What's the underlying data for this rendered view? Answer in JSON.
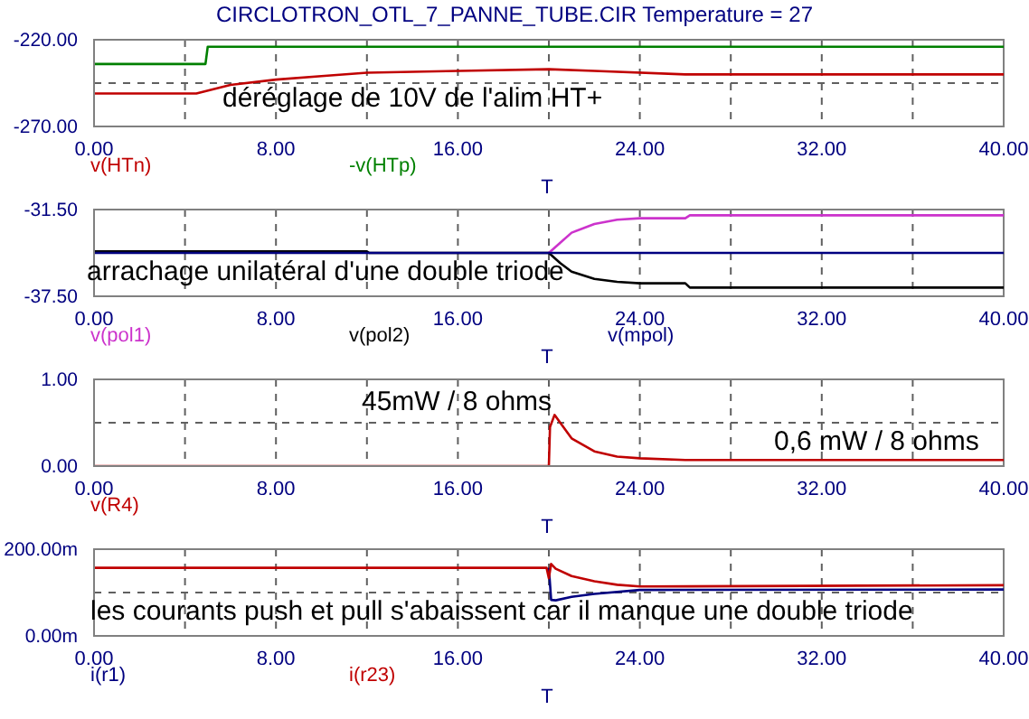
{
  "chart_data": [
    {
      "type": "line",
      "title": "CIRCLOTRON_OTL_7_PANNE_TUBE.CIR Temperature = 27",
      "xlabel": "T",
      "xlim": [
        0,
        40
      ],
      "xticks": [
        {
          "value": 0,
          "label": "0.00"
        },
        {
          "value": 4,
          "label": null
        },
        {
          "value": 8,
          "label": "8.00"
        },
        {
          "value": 12,
          "label": null
        },
        {
          "value": 16,
          "label": "16.00"
        },
        {
          "value": 20,
          "label": null
        },
        {
          "value": 24,
          "label": "24.00"
        },
        {
          "value": 28,
          "label": null
        },
        {
          "value": 32,
          "label": "32.00"
        },
        {
          "value": 36,
          "label": null
        },
        {
          "value": 40,
          "label": "40.00"
        }
      ],
      "ylim": [
        -270,
        -220
      ],
      "yticks": [
        {
          "value": -270,
          "label": "-270.00"
        },
        {
          "value": -245,
          "label": null
        },
        {
          "value": -220,
          "label": "-220.00"
        }
      ],
      "grid": true,
      "legend": "bottom",
      "marker": "none",
      "annotations": [
        "déréglage de 10V de l'alim HT+"
      ],
      "series": [
        {
          "name": "v(HTn)",
          "color": "#c00000",
          "x": [
            0,
            4.5,
            6,
            8,
            10,
            12,
            16,
            20,
            22,
            26,
            40
          ],
          "values": [
            -251,
            -251,
            -246,
            -243,
            -241,
            -239,
            -238,
            -237,
            -238,
            -240,
            -240
          ]
        },
        {
          "name": "-v(HTp)",
          "color": "#008000",
          "x": [
            0,
            4.9,
            5,
            40
          ],
          "values": [
            -234,
            -234,
            -224,
            -224
          ]
        }
      ]
    },
    {
      "type": "line",
      "xlabel": "T",
      "xlim": [
        0,
        40
      ],
      "xticks": [
        {
          "value": 0,
          "label": "0.00"
        },
        {
          "value": 4,
          "label": null
        },
        {
          "value": 8,
          "label": "8.00"
        },
        {
          "value": 12,
          "label": null
        },
        {
          "value": 16,
          "label": "16.00"
        },
        {
          "value": 20,
          "label": null
        },
        {
          "value": 24,
          "label": "24.00"
        },
        {
          "value": 28,
          "label": null
        },
        {
          "value": 32,
          "label": "32.00"
        },
        {
          "value": 36,
          "label": null
        },
        {
          "value": 40,
          "label": "40.00"
        }
      ],
      "ylim": [
        -37.5,
        -31.5
      ],
      "yticks": [
        {
          "value": -37.5,
          "label": "-37.50"
        },
        {
          "value": -34.5,
          "label": null
        },
        {
          "value": -31.5,
          "label": "-31.50"
        }
      ],
      "grid": true,
      "legend": "bottom",
      "marker": "none",
      "annotations": [
        "arrachage unilatéral d'une double triode"
      ],
      "series": [
        {
          "name": "v(pol1)",
          "color": "#cc33cc",
          "x": [
            20,
            20.5,
            21,
            22,
            23,
            24,
            26,
            26.2,
            40
          ],
          "values": [
            -34.5,
            -33.8,
            -33.1,
            -32.5,
            -32.2,
            -32.1,
            -32.1,
            -31.9,
            -31.9
          ]
        },
        {
          "name": "v(pol2)",
          "color": "#000000",
          "x": [
            0,
            12,
            12.1,
            20,
            20.5,
            21,
            22,
            23,
            24,
            26,
            26.2,
            40
          ],
          "values": [
            -34.4,
            -34.4,
            -34.5,
            -34.5,
            -35.2,
            -35.8,
            -36.3,
            -36.5,
            -36.6,
            -36.6,
            -36.9,
            -36.9
          ]
        },
        {
          "name": "v(mpol)",
          "color": "#000080",
          "x": [
            0,
            40
          ],
          "values": [
            -34.5,
            -34.5
          ]
        }
      ]
    },
    {
      "type": "line",
      "xlabel": "T",
      "xlim": [
        0,
        40
      ],
      "xticks": [
        {
          "value": 0,
          "label": "0.00"
        },
        {
          "value": 4,
          "label": null
        },
        {
          "value": 8,
          "label": "8.00"
        },
        {
          "value": 12,
          "label": null
        },
        {
          "value": 16,
          "label": "16.00"
        },
        {
          "value": 20,
          "label": null
        },
        {
          "value": 24,
          "label": "24.00"
        },
        {
          "value": 28,
          "label": null
        },
        {
          "value": 32,
          "label": "32.00"
        },
        {
          "value": 36,
          "label": null
        },
        {
          "value": 40,
          "label": "40.00"
        }
      ],
      "ylim": [
        0,
        1
      ],
      "yticks": [
        {
          "value": 0,
          "label": "0.00"
        },
        {
          "value": 0.5,
          "label": null
        },
        {
          "value": 1,
          "label": "1.00"
        }
      ],
      "grid": true,
      "legend": "bottom",
      "marker": "none",
      "annotations": [
        "45mW / 8 ohms",
        "0,6 mW / 8 ohms"
      ],
      "series": [
        {
          "name": "v(R4)",
          "color": "#c00000",
          "x": [
            0,
            20,
            20.05,
            20.25,
            20.5,
            21,
            22,
            23,
            24,
            26,
            40
          ],
          "values": [
            0,
            0,
            0.45,
            0.59,
            0.5,
            0.32,
            0.17,
            0.11,
            0.09,
            0.07,
            0.07
          ]
        }
      ]
    },
    {
      "type": "line",
      "xlabel": "T",
      "xlim": [
        0,
        40
      ],
      "xticks": [
        {
          "value": 0,
          "label": "0.00"
        },
        {
          "value": 4,
          "label": null
        },
        {
          "value": 8,
          "label": "8.00"
        },
        {
          "value": 12,
          "label": null
        },
        {
          "value": 16,
          "label": "16.00"
        },
        {
          "value": 20,
          "label": null
        },
        {
          "value": 24,
          "label": "24.00"
        },
        {
          "value": 28,
          "label": null
        },
        {
          "value": 32,
          "label": "32.00"
        },
        {
          "value": 36,
          "label": null
        },
        {
          "value": 40,
          "label": "40.00"
        }
      ],
      "ylim": [
        0,
        200
      ],
      "yticks": [
        {
          "value": 0,
          "label": "0.00m"
        },
        {
          "value": 100,
          "label": null
        },
        {
          "value": 200,
          "label": "200.00m"
        }
      ],
      "grid": true,
      "legend": "bottom",
      "marker": "none",
      "annotations": [
        "les courants push et pull s'abaissent car il manque une double triode"
      ],
      "series": [
        {
          "name": "i(r1)",
          "color": "#000080",
          "x": [
            20,
            20.1,
            20.3,
            21,
            22,
            24,
            40
          ],
          "values": [
            157,
            83,
            82,
            90,
            97,
            106,
            107
          ]
        },
        {
          "name": "i(r23)",
          "color": "#c00000",
          "x": [
            0,
            19.9,
            20,
            20.1,
            20.3,
            21,
            22,
            23,
            24,
            40
          ],
          "values": [
            157,
            157,
            133,
            166,
            155,
            138,
            126,
            118,
            114,
            117
          ]
        }
      ]
    }
  ]
}
